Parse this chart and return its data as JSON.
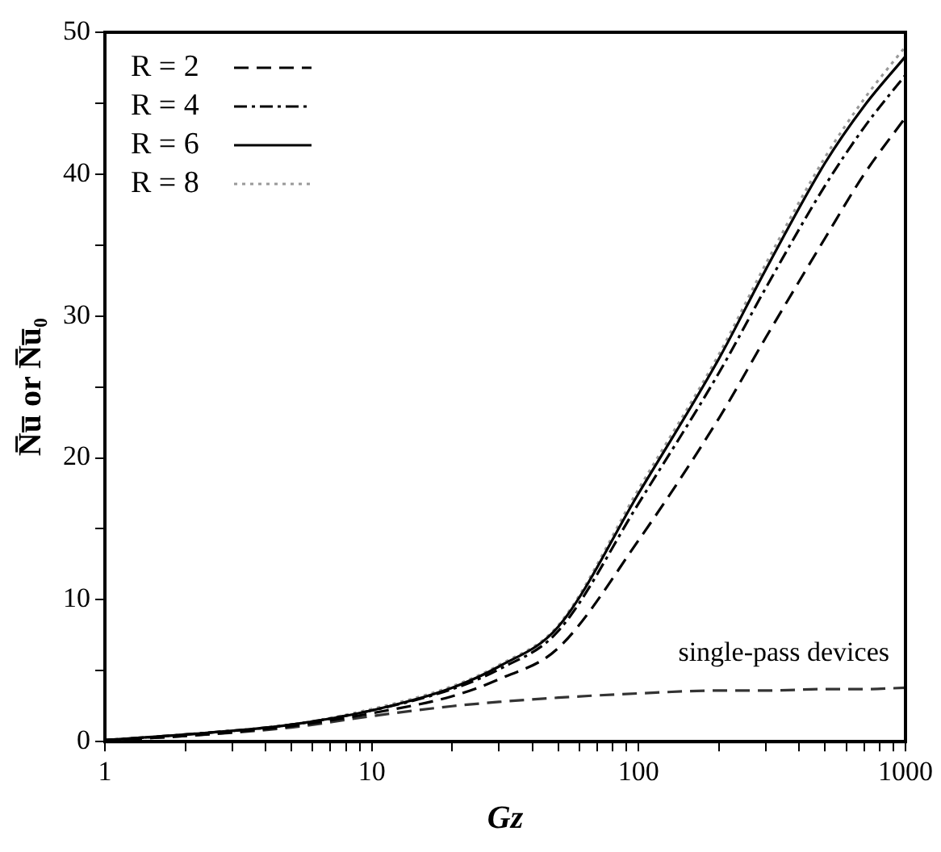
{
  "chart_data": {
    "type": "line",
    "x": [
      1,
      2,
      5,
      10,
      20,
      30,
      50,
      100,
      200,
      300,
      500,
      700,
      1000
    ],
    "series": [
      {
        "name": "R = 2",
        "color": "#000000",
        "line_style": "dashed",
        "values": [
          0.1,
          0.4,
          1.1,
          2.0,
          3.2,
          4.4,
          6.6,
          14.2,
          22.8,
          28.5,
          35.5,
          40,
          44
        ]
      },
      {
        "name": "R = 4",
        "color": "#000000",
        "line_style": "dashdot",
        "values": [
          0.1,
          0.5,
          1.2,
          2.2,
          3.7,
          5.1,
          7.8,
          16.8,
          26,
          32,
          39.2,
          43.3,
          47
        ]
      },
      {
        "name": "R = 6",
        "color": "#000000",
        "line_style": "solid",
        "values": [
          0.1,
          0.5,
          1.2,
          2.2,
          3.8,
          5.3,
          8.1,
          17.5,
          27,
          33.3,
          40.8,
          44.8,
          48.3
        ]
      },
      {
        "name": "R = 8",
        "color": "#999999",
        "line_style": "dotted",
        "values": [
          0.1,
          0.5,
          1.2,
          2.3,
          3.9,
          5.4,
          8.2,
          17.8,
          27.3,
          33.7,
          41.2,
          45.3,
          49
        ]
      },
      {
        "color": "#333333",
        "line_style": "dashed",
        "values": [
          0.1,
          0.4,
          1.0,
          1.8,
          2.5,
          2.8,
          3.1,
          3.4,
          3.6,
          3.6,
          3.7,
          3.7,
          3.8
        ]
      }
    ],
    "xlabel": "Gz",
    "ylabel": "N̅u̅ or N̅u̅₀",
    "annotations": [
      "single-pass devices"
    ],
    "log": "x",
    "xlim": [
      1,
      1000
    ],
    "ylim": [
      0,
      50
    ],
    "xticks": [
      1,
      {
        "value": 2,
        "label": null
      },
      {
        "value": 3,
        "label": null
      },
      {
        "value": 4,
        "label": null
      },
      {
        "value": 5,
        "label": null
      },
      {
        "value": 6,
        "label": null
      },
      {
        "value": 7,
        "label": null
      },
      {
        "value": 8,
        "label": null
      },
      {
        "value": 9,
        "label": null
      },
      10,
      {
        "value": 20,
        "label": null
      },
      {
        "value": 30,
        "label": null
      },
      {
        "value": 40,
        "label": null
      },
      {
        "value": 50,
        "label": null
      },
      {
        "value": 60,
        "label": null
      },
      {
        "value": 70,
        "label": null
      },
      {
        "value": 80,
        "label": null
      },
      {
        "value": 90,
        "label": null
      },
      100,
      {
        "value": 200,
        "label": null
      },
      {
        "value": 300,
        "label": null
      },
      {
        "value": 400,
        "label": null
      },
      {
        "value": 500,
        "label": null
      },
      {
        "value": 600,
        "label": null
      },
      {
        "value": 700,
        "label": null
      },
      {
        "value": 800,
        "label": null
      },
      {
        "value": 900,
        "label": null
      },
      1000
    ],
    "yticks": [
      0,
      {
        "value": 5,
        "label": null
      },
      10,
      {
        "value": 15,
        "label": null
      },
      20,
      {
        "value": 25,
        "label": null
      },
      30,
      {
        "value": 35,
        "label": null
      },
      40,
      {
        "value": 45,
        "label": null
      },
      50
    ],
    "grid": false,
    "legend": "top left",
    "marker": "none"
  }
}
